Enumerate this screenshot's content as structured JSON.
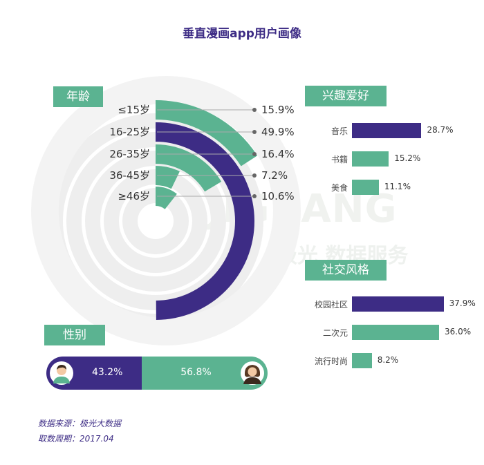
{
  "title": "垂直漫画app用户画像",
  "colors": {
    "purple": "#3d2c85",
    "green": "#5bb391",
    "ring": "#eeeeee"
  },
  "watermark": {
    "brand": "JIGUANG",
    "sub": "极光 数据服务"
  },
  "sections": {
    "age": "年龄",
    "interest": "兴趣爱好",
    "social": "社交风格",
    "gender": "性别"
  },
  "chart_data": [
    {
      "type": "radial-bar",
      "title": "年龄",
      "categories": [
        "≤15岁",
        "16-25岁",
        "26-35岁",
        "36-45岁",
        "≥46岁"
      ],
      "values": [
        15.9,
        49.9,
        16.4,
        7.2,
        10.6
      ],
      "value_labels": [
        "15.9%",
        "49.9%",
        "16.4%",
        "7.2%",
        "10.6%"
      ],
      "highlight_index": 1
    },
    {
      "type": "bar",
      "title": "兴趣爱好",
      "categories": [
        "音乐",
        "书籍",
        "美食"
      ],
      "values": [
        28.7,
        15.2,
        11.1
      ],
      "value_labels": [
        "28.7%",
        "15.2%",
        "11.1%"
      ],
      "highlight_index": 0
    },
    {
      "type": "bar",
      "title": "社交风格",
      "categories": [
        "校园社区",
        "二次元",
        "流行时尚"
      ],
      "values": [
        37.9,
        36.0,
        8.2
      ],
      "value_labels": [
        "37.9%",
        "36.0%",
        "8.2%"
      ],
      "highlight_index": 0
    },
    {
      "type": "stacked-bar",
      "title": "性别",
      "categories": [
        "男",
        "女"
      ],
      "values": [
        43.2,
        56.8
      ],
      "value_labels": [
        "43.2%",
        "56.8%"
      ]
    }
  ],
  "source": {
    "line1": "数据来源：极光大数据",
    "line2": "取数周期：2017.04"
  }
}
